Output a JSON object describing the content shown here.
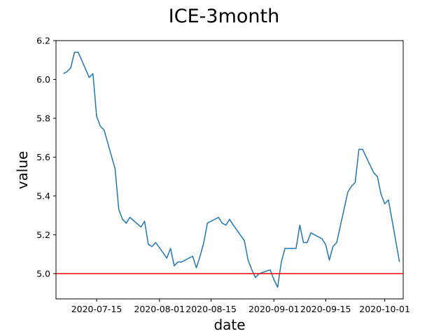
{
  "chart_data": {
    "type": "line",
    "title": "ICE-3month",
    "xlabel": "date",
    "ylabel": "value",
    "xlim": [
      "2020-07-04",
      "2020-10-06"
    ],
    "ylim": [
      4.87,
      6.2
    ],
    "x_ticks": [
      "2020-07-15",
      "2020-08-01",
      "2020-08-15",
      "2020-09-01",
      "2020-09-15",
      "2020-10-01"
    ],
    "y_ticks": [
      5.0,
      5.2,
      5.4,
      5.6,
      5.8,
      6.0,
      6.2
    ],
    "grid": false,
    "series": [
      {
        "color": "#1f77b4",
        "x": [
          "2020-07-06",
          "2020-07-07",
          "2020-07-08",
          "2020-07-09",
          "2020-07-10",
          "2020-07-13",
          "2020-07-14",
          "2020-07-15",
          "2020-07-16",
          "2020-07-17",
          "2020-07-20",
          "2020-07-21",
          "2020-07-22",
          "2020-07-23",
          "2020-07-24",
          "2020-07-27",
          "2020-07-28",
          "2020-07-29",
          "2020-07-30",
          "2020-07-31",
          "2020-08-03",
          "2020-08-04",
          "2020-08-05",
          "2020-08-06",
          "2020-08-07",
          "2020-08-10",
          "2020-08-11",
          "2020-08-12",
          "2020-08-13",
          "2020-08-14",
          "2020-08-17",
          "2020-08-18",
          "2020-08-19",
          "2020-08-20",
          "2020-08-21",
          "2020-08-24",
          "2020-08-25",
          "2020-08-26",
          "2020-08-27",
          "2020-08-28",
          "2020-08-31",
          "2020-09-01",
          "2020-09-02",
          "2020-09-03",
          "2020-09-04",
          "2020-09-07",
          "2020-09-08",
          "2020-09-09",
          "2020-09-10",
          "2020-09-11",
          "2020-09-14",
          "2020-09-15",
          "2020-09-16",
          "2020-09-17",
          "2020-09-18",
          "2020-09-21",
          "2020-09-22",
          "2020-09-23",
          "2020-09-24",
          "2020-09-25",
          "2020-09-28",
          "2020-09-29",
          "2020-09-30",
          "2020-10-01",
          "2020-10-02",
          "2020-10-05"
        ],
        "y": [
          6.03,
          6.04,
          6.06,
          6.14,
          6.14,
          6.01,
          6.03,
          5.81,
          5.76,
          5.74,
          5.54,
          5.33,
          5.28,
          5.26,
          5.29,
          5.24,
          5.27,
          5.15,
          5.14,
          5.16,
          5.08,
          5.13,
          5.04,
          5.06,
          5.06,
          5.09,
          5.03,
          5.09,
          5.16,
          5.26,
          5.29,
          5.26,
          5.25,
          5.28,
          5.25,
          5.17,
          5.07,
          5.02,
          4.98,
          5.0,
          5.02,
          4.97,
          4.93,
          5.06,
          5.13,
          5.13,
          5.25,
          5.16,
          5.16,
          5.21,
          5.18,
          5.15,
          5.07,
          5.14,
          5.16,
          5.42,
          5.45,
          5.47,
          5.64,
          5.64,
          5.52,
          5.5,
          5.41,
          5.36,
          5.38,
          5.06
        ]
      }
    ],
    "reference_line": {
      "axis": "y",
      "value": 5.0,
      "color": "#ff0000"
    }
  }
}
